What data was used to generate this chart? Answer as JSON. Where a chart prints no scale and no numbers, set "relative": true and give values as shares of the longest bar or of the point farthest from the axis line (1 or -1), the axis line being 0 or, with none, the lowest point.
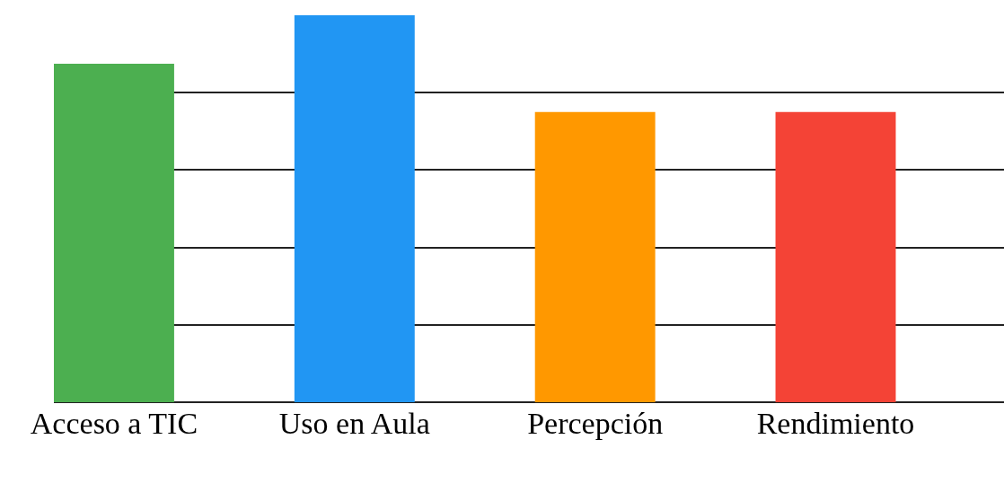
{
  "chart_data": {
    "type": "bar",
    "relative": true,
    "grid": "y",
    "categories": [
      "Acceso a TIC",
      "Uso en Aula",
      "Percepción",
      "Rendimiento"
    ],
    "values": [
      0.875,
      1,
      0.75,
      0.75
    ],
    "colors": [
      "#4caf50",
      "#2196f3",
      "#ff9800",
      "#f44336"
    ]
  }
}
